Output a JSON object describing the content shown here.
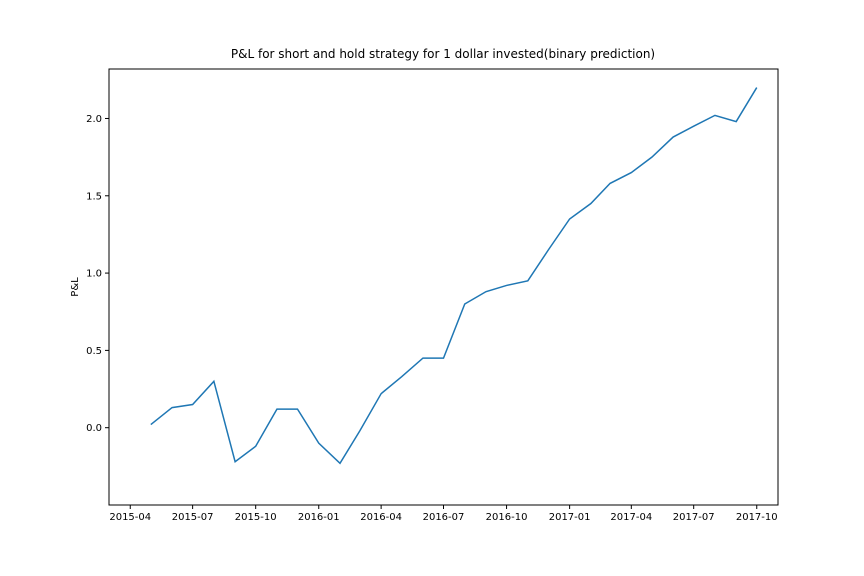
{
  "chart_data": {
    "type": "line",
    "title": "P&L for short and hold strategy for 1 dollar invested(binary prediction)",
    "y_label": "P&L",
    "x": [
      "2015-05",
      "2015-06",
      "2015-07",
      "2015-08",
      "2015-09",
      "2015-10",
      "2015-11",
      "2015-12",
      "2016-01",
      "2016-02",
      "2016-03",
      "2016-04",
      "2016-05",
      "2016-06",
      "2016-07",
      "2016-08",
      "2016-09",
      "2016-10",
      "2016-11",
      "2016-12",
      "2017-01",
      "2017-02",
      "2017-03",
      "2017-04",
      "2017-05",
      "2017-06",
      "2017-07",
      "2017-08",
      "2017-09",
      "2017-10"
    ],
    "series": [
      {
        "color": "#1f77b4",
        "values": [
          0.02,
          0.13,
          0.15,
          0.3,
          -0.22,
          -0.12,
          0.12,
          0.12,
          -0.1,
          -0.23,
          -0.02,
          0.22,
          0.33,
          0.45,
          0.45,
          0.8,
          0.88,
          0.92,
          0.95,
          1.15,
          1.35,
          1.45,
          1.58,
          1.65,
          1.75,
          1.88,
          1.95,
          2.02,
          1.98,
          2.2
        ]
      }
    ],
    "xlim": [
      "2015-03",
      "2017-11"
    ],
    "xticks": [
      "2015-04",
      "2015-07",
      "2015-10",
      "2016-01",
      "2016-04",
      "2016-07",
      "2016-10",
      "2017-01",
      "2017-04",
      "2017-07",
      "2017-10"
    ],
    "ylim": [
      -0.5,
      2.32
    ],
    "yticks": [
      {
        "value": 0,
        "label": "0.0"
      },
      {
        "value": 0.5,
        "label": "0.5"
      },
      {
        "value": 1,
        "label": "1.0"
      },
      {
        "value": 1.5,
        "label": "1.5"
      },
      {
        "value": 2,
        "label": "2.0"
      }
    ],
    "grid": false
  }
}
